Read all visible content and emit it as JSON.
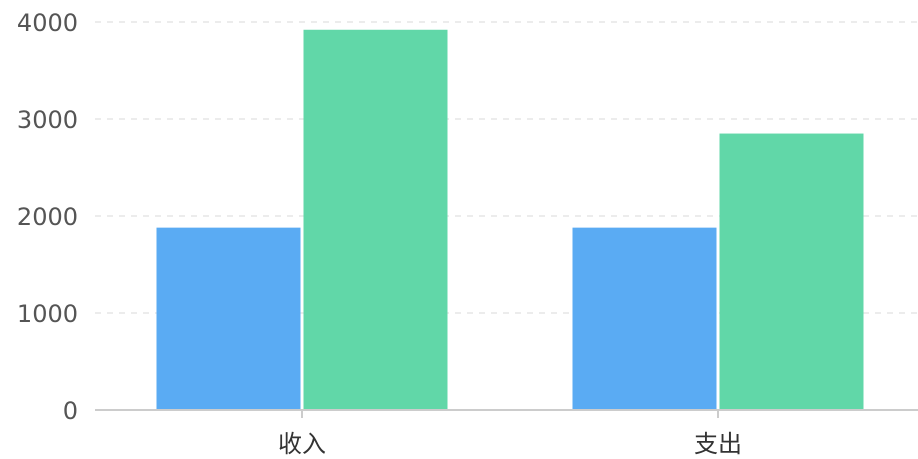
{
  "chart_data": {
    "type": "bar",
    "categories": [
      "收入",
      "支出"
    ],
    "series": [
      {
        "values": [
          1880,
          1880
        ],
        "color": "#5aabf3"
      },
      {
        "values": [
          3920,
          2850
        ],
        "color": "#61d7a8"
      }
    ],
    "title": "",
    "xlabel": "",
    "ylabel": "",
    "ylim": [
      0,
      4000
    ],
    "yticks": [
      0,
      1000,
      2000,
      3000,
      4000
    ],
    "grid": true,
    "legend": "none"
  }
}
